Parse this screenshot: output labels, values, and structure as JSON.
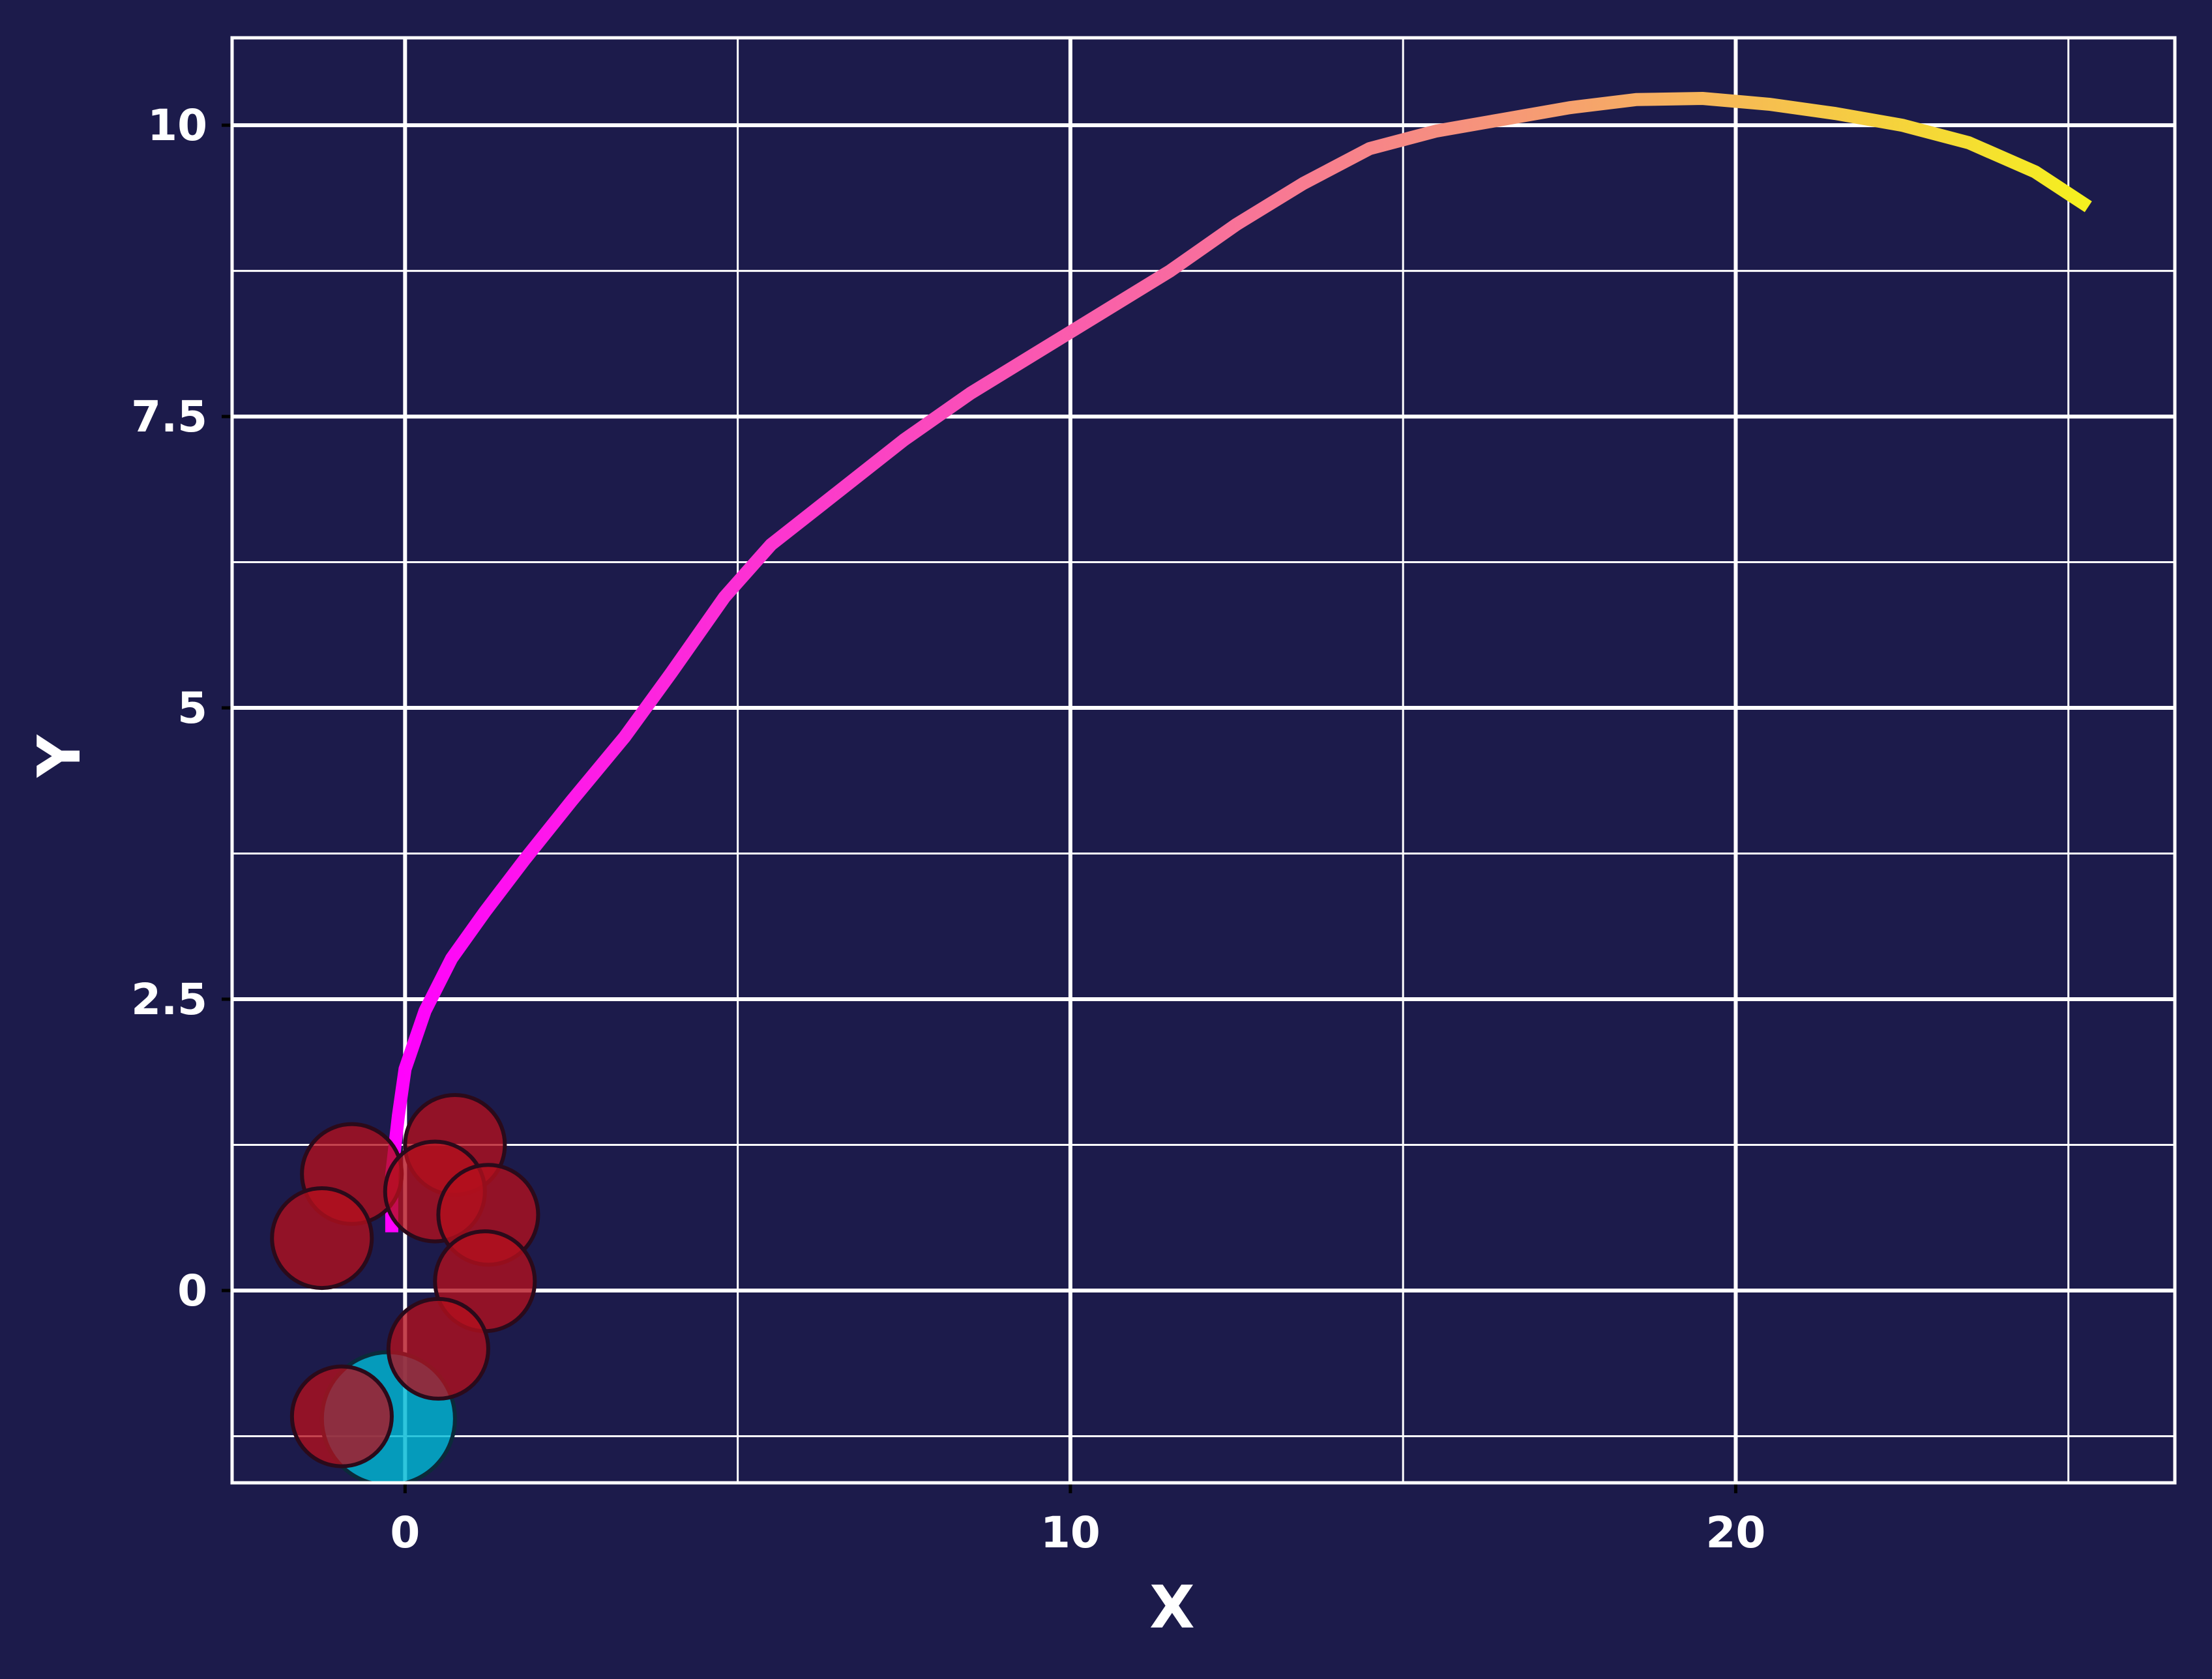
{
  "chart_data": {
    "type": "line",
    "title": "",
    "xlabel": "X",
    "ylabel": "Y",
    "xlim": [
      -2.6,
      26.6
    ],
    "ylim": [
      -1.65,
      10.75
    ],
    "x_major_ticks": [
      0,
      10,
      20
    ],
    "x_minor_grid": [
      5,
      15,
      25
    ],
    "y_major_ticks": [
      0,
      2.5,
      5,
      7.5,
      10
    ],
    "y_tick_labels": [
      "0",
      "2.5",
      "5",
      "7.5",
      "10"
    ],
    "y_minor_grid": [
      -1.25,
      1.25,
      3.75,
      6.25,
      8.75
    ],
    "grid": true,
    "colors": {
      "background": "#1c1b4b",
      "grid": "#ffffff",
      "path_start": "#ff00ff",
      "path_mid": "#f6957a",
      "path_end": "#f5f01f",
      "obstacle_fill": "#b30f1e",
      "obstacle_edge": "#2a0a1a",
      "start_fill": "#00b8d4"
    },
    "series": [
      {
        "type": "line",
        "x": [
          -0.2,
          -0.2,
          -0.1,
          0.0,
          0.3,
          0.7,
          1.2,
          1.8,
          2.5,
          3.3,
          4.0,
          4.8,
          5.5,
          6.5,
          7.5,
          8.5,
          9.5,
          10.5,
          11.5,
          12.5,
          13.5,
          14.5,
          15.5,
          16.5,
          17.5,
          18.5,
          19.5,
          20.5,
          21.5,
          22.5,
          23.5,
          24.5,
          25.3
        ],
        "y": [
          0.5,
          1.0,
          1.5,
          1.9,
          2.4,
          2.85,
          3.25,
          3.7,
          4.2,
          4.75,
          5.3,
          5.95,
          6.4,
          6.85,
          7.3,
          7.7,
          8.05,
          8.4,
          8.75,
          9.15,
          9.5,
          9.8,
          9.95,
          10.05,
          10.15,
          10.22,
          10.23,
          10.18,
          10.1,
          10.0,
          9.85,
          9.6,
          9.3
        ]
      },
      {
        "type": "scatter",
        "name": "obstacles",
        "x": [
          -0.8,
          0.75,
          -1.25,
          0.45,
          1.25,
          1.2,
          0.5,
          -0.95
        ],
        "y": [
          1.0,
          1.25,
          0.45,
          0.85,
          0.65,
          0.08,
          -0.5,
          -1.08
        ],
        "r": [
          0.75,
          0.75,
          0.75,
          0.75,
          0.75,
          0.75,
          0.75,
          0.75
        ]
      },
      {
        "type": "scatter",
        "name": "start",
        "x": [
          -0.25
        ],
        "y": [
          -1.1
        ],
        "r": [
          1.0
        ]
      }
    ]
  }
}
